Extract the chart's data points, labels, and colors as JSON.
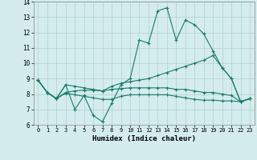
{
  "xlabel": "Humidex (Indice chaleur)",
  "background_color": "#d4eced",
  "grid_color": "#b0d0d2",
  "line_color": "#1a7a6a",
  "xlim": [
    -0.5,
    23.5
  ],
  "ylim": [
    6,
    14
  ],
  "xticks": [
    0,
    1,
    2,
    3,
    4,
    5,
    6,
    7,
    8,
    9,
    10,
    11,
    12,
    13,
    14,
    15,
    16,
    17,
    18,
    19,
    20,
    21,
    22,
    23
  ],
  "yticks": [
    6,
    7,
    8,
    9,
    10,
    11,
    12,
    13,
    14
  ],
  "line1": [
    8.9,
    8.1,
    7.7,
    8.6,
    7.0,
    7.9,
    6.6,
    6.2,
    7.4,
    8.6,
    9.0,
    11.5,
    11.3,
    13.4,
    13.6,
    11.5,
    12.8,
    12.5,
    11.9,
    10.8,
    9.7,
    9.0,
    7.5,
    7.7
  ],
  "line2": [
    8.9,
    8.1,
    7.7,
    8.6,
    8.5,
    8.4,
    8.3,
    8.2,
    8.5,
    8.7,
    8.8,
    8.9,
    9.0,
    9.2,
    9.4,
    9.6,
    9.8,
    10.0,
    10.2,
    10.5,
    9.7,
    9.0,
    7.5,
    7.7
  ],
  "line3": [
    8.9,
    8.1,
    7.7,
    8.1,
    8.2,
    8.25,
    8.25,
    8.2,
    8.3,
    8.35,
    8.4,
    8.4,
    8.4,
    8.4,
    8.4,
    8.3,
    8.3,
    8.2,
    8.1,
    8.1,
    8.0,
    7.9,
    7.5,
    7.7
  ],
  "line4": [
    8.9,
    8.1,
    7.7,
    8.05,
    7.95,
    7.85,
    7.75,
    7.65,
    7.65,
    7.85,
    7.95,
    7.95,
    7.95,
    7.95,
    7.95,
    7.85,
    7.75,
    7.65,
    7.6,
    7.6,
    7.55,
    7.55,
    7.5,
    7.7
  ]
}
